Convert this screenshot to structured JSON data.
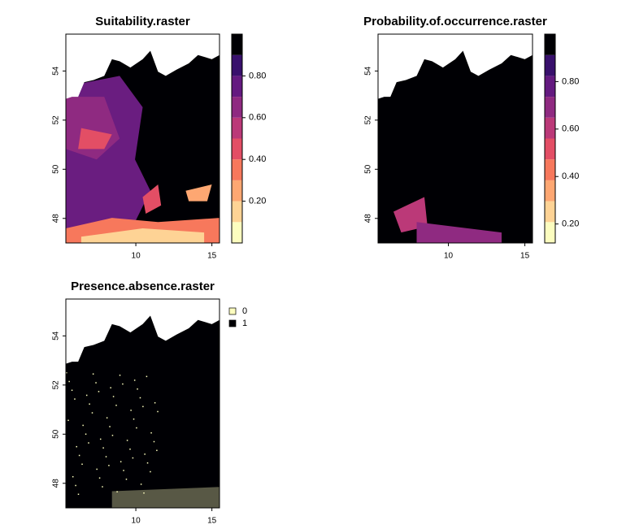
{
  "chart_data": [
    {
      "type": "raster",
      "title": "Suitability.raster",
      "xlim": [
        5.4,
        15.5
      ],
      "ylim": [
        47,
        55.5
      ],
      "xticks": [
        10,
        15
      ],
      "yticks": [
        48,
        50,
        52,
        54
      ],
      "zlim": [
        0,
        1
      ],
      "zticks": [
        {
          "value": 0.2,
          "label": "0.20"
        },
        {
          "value": 0.4,
          "label": "0.40"
        },
        {
          "value": 0.6,
          "label": "0.60"
        },
        {
          "value": 0.8,
          "label": "0.80"
        }
      ],
      "colors": [
        "#fcfdbf",
        "#fed395",
        "#fea772",
        "#f7785c",
        "#e34e65",
        "#bb3978",
        "#8f2a81",
        "#641a80",
        "#38106c",
        "#000004"
      ]
    },
    {
      "type": "raster",
      "title": "Probability.of.occurrence.raster",
      "xlim": [
        5.4,
        15.5
      ],
      "ylim": [
        47,
        55.5
      ],
      "xticks": [
        10,
        15
      ],
      "yticks": [
        48,
        50,
        52,
        54
      ],
      "zlim": [
        0.12,
        1
      ],
      "zticks": [
        {
          "value": 0.2,
          "label": "0.20"
        },
        {
          "value": 0.4,
          "label": "0.40"
        },
        {
          "value": 0.6,
          "label": "0.60"
        },
        {
          "value": 0.8,
          "label": "0.80"
        }
      ],
      "colors": [
        "#fcfdbf",
        "#fed395",
        "#fea772",
        "#f7785c",
        "#e34e65",
        "#bb3978",
        "#8f2a81",
        "#641a80",
        "#38106c",
        "#000004"
      ]
    },
    {
      "type": "raster",
      "title": "Presence.absence.raster",
      "xlim": [
        5.4,
        15.5
      ],
      "ylim": [
        47,
        55.5
      ],
      "xticks": [
        10,
        15
      ],
      "yticks": [
        48,
        50,
        52,
        54
      ],
      "categories": [
        "0",
        "1"
      ],
      "colors": [
        "#fcfdbf",
        "#000004"
      ]
    }
  ]
}
